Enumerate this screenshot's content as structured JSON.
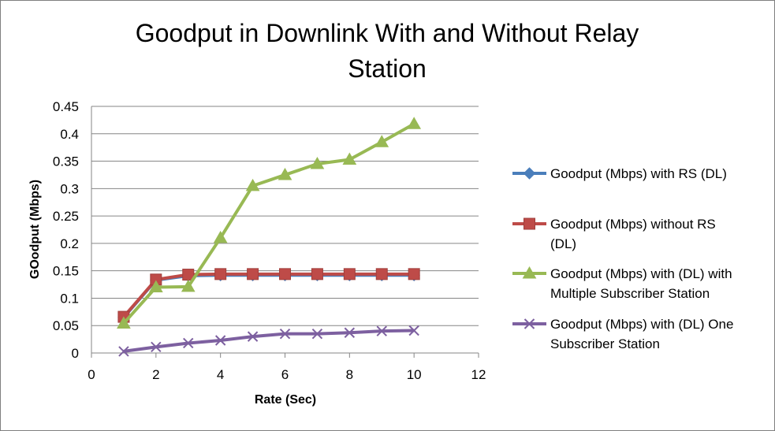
{
  "chart_data": {
    "type": "line",
    "title_lines": [
      "Goodput in Downlink With and Without Relay",
      "Station"
    ],
    "xlabel": "Rate (Sec)",
    "ylabel": "GOodput (Mbps)",
    "xlim": [
      0,
      12
    ],
    "ylim": [
      0,
      0.45
    ],
    "x_ticks": [
      0,
      2,
      4,
      6,
      8,
      10,
      12
    ],
    "y_ticks": [
      0,
      0.05,
      0.1,
      0.15,
      0.2,
      0.25,
      0.3,
      0.35,
      0.4,
      0.45
    ],
    "grid": "horizontal",
    "legend_position": "right",
    "x": [
      1,
      2,
      3,
      4,
      5,
      6,
      7,
      8,
      9,
      10
    ],
    "series": [
      {
        "name": "Goodput (Mbps) with RS (DL)",
        "legend_lines": [
          "Goodput (Mbps) with RS (DL)"
        ],
        "color": "#4a7ebb",
        "marker": "diamond",
        "values": [
          0.065,
          0.133,
          0.141,
          0.142,
          0.142,
          0.142,
          0.142,
          0.142,
          0.142,
          0.142
        ]
      },
      {
        "name": "Goodput (Mbps) without RS (DL)",
        "legend_lines": [
          "Goodput (Mbps) without RS",
          "(DL)"
        ],
        "color": "#be4b48",
        "marker": "square",
        "values": [
          0.066,
          0.134,
          0.143,
          0.144,
          0.144,
          0.144,
          0.144,
          0.144,
          0.144,
          0.144
        ]
      },
      {
        "name": "Goodput (Mbps) with (DL) with Multiple Subscriber Station",
        "legend_lines": [
          "Goodput (Mbps) with (DL) with",
          "Multiple Subscriber Station"
        ],
        "color": "#98b954",
        "marker": "triangle",
        "values": [
          0.054,
          0.12,
          0.121,
          0.21,
          0.305,
          0.325,
          0.345,
          0.353,
          0.385,
          0.418
        ]
      },
      {
        "name": "Goodput (Mbps) with (DL) One Subscriber Station",
        "legend_lines": [
          "Goodput (Mbps) with (DL) One",
          "Subscriber Station"
        ],
        "color": "#7d60a0",
        "marker": "x",
        "values": [
          0.003,
          0.011,
          0.018,
          0.023,
          0.03,
          0.035,
          0.035,
          0.037,
          0.04,
          0.041
        ]
      }
    ]
  }
}
